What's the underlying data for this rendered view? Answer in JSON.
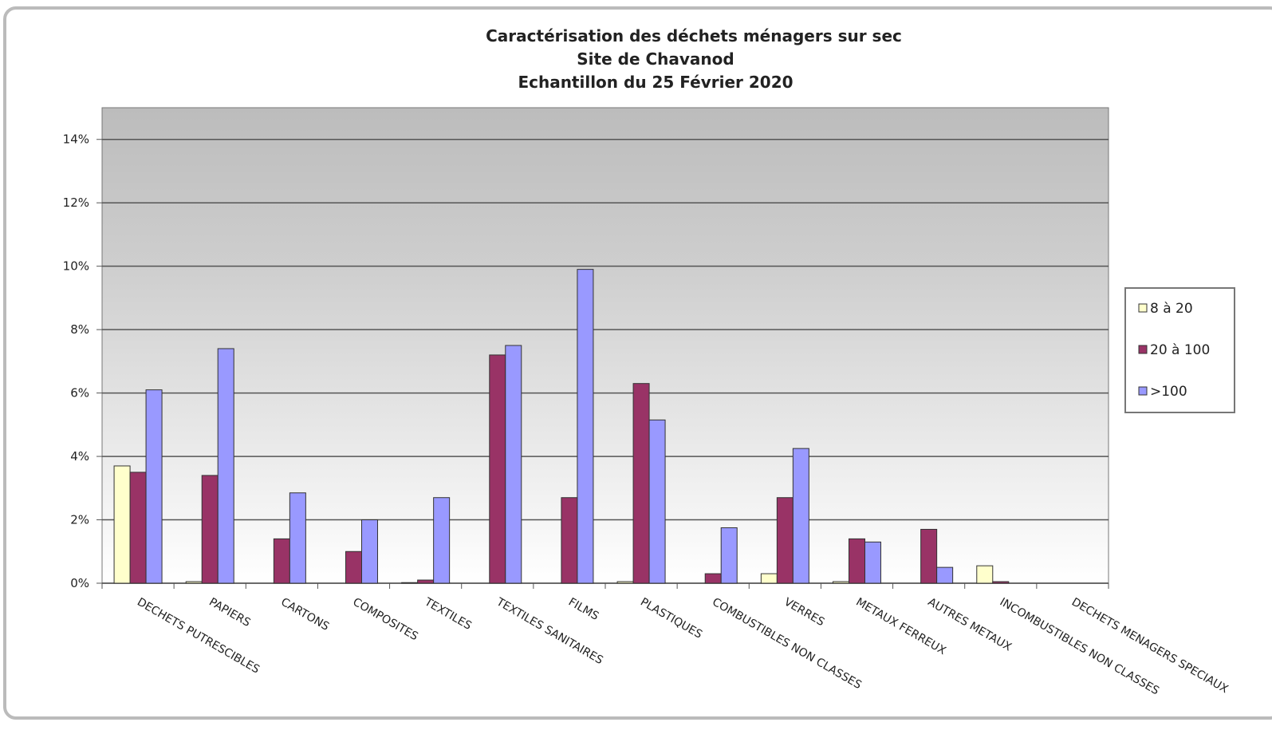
{
  "chart_data": {
    "type": "bar",
    "title": [
      "Caractérisation des déchets ménagers  sur sec",
      "Site de Chavanod",
      "Echantillon du 25 Février 2020"
    ],
    "categories": [
      "DECHETS PUTRESCIBLES",
      "PAPIERS",
      "CARTONS",
      "COMPOSITES",
      "TEXTILES",
      "TEXTILES SANITAIRES",
      "FILMS",
      "PLASTIQUES",
      "COMBUSTIBLES NON CLASSES",
      "VERRES",
      "METAUX FERREUX",
      "AUTRES METAUX",
      "INCOMBUSTIBLES NON CLASSES",
      "DECHETS MENAGERS SPECIAUX"
    ],
    "series": [
      {
        "name": "8 à 20",
        "color": "#ffffcc",
        "values": [
          3.7,
          0.05,
          0,
          0,
          0.02,
          0,
          0,
          0.05,
          0,
          0.3,
          0.05,
          0,
          0.55,
          0
        ]
      },
      {
        "name": "20 à 100",
        "color": "#993366",
        "values": [
          3.5,
          3.4,
          1.4,
          1.0,
          0.1,
          7.2,
          2.7,
          6.3,
          0.3,
          2.7,
          1.4,
          1.7,
          0.05,
          0
        ]
      },
      {
        "name": ">100",
        "color": "#9999ff",
        "values": [
          6.1,
          7.4,
          2.85,
          2.0,
          2.7,
          7.5,
          9.9,
          5.15,
          1.75,
          4.25,
          1.3,
          0.5,
          0,
          0
        ]
      }
    ],
    "ylim": [
      0,
      15
    ],
    "yticks": [
      {
        "value": 0,
        "label": "0%"
      },
      {
        "value": 2,
        "label": "2%"
      },
      {
        "value": 4,
        "label": "4%"
      },
      {
        "value": 6,
        "label": "6%"
      },
      {
        "value": 8,
        "label": "8%"
      },
      {
        "value": 10,
        "label": "10%"
      },
      {
        "value": 12,
        "label": "12%"
      },
      {
        "value": 14,
        "label": "14%"
      }
    ],
    "grid": true,
    "legend": "right"
  }
}
